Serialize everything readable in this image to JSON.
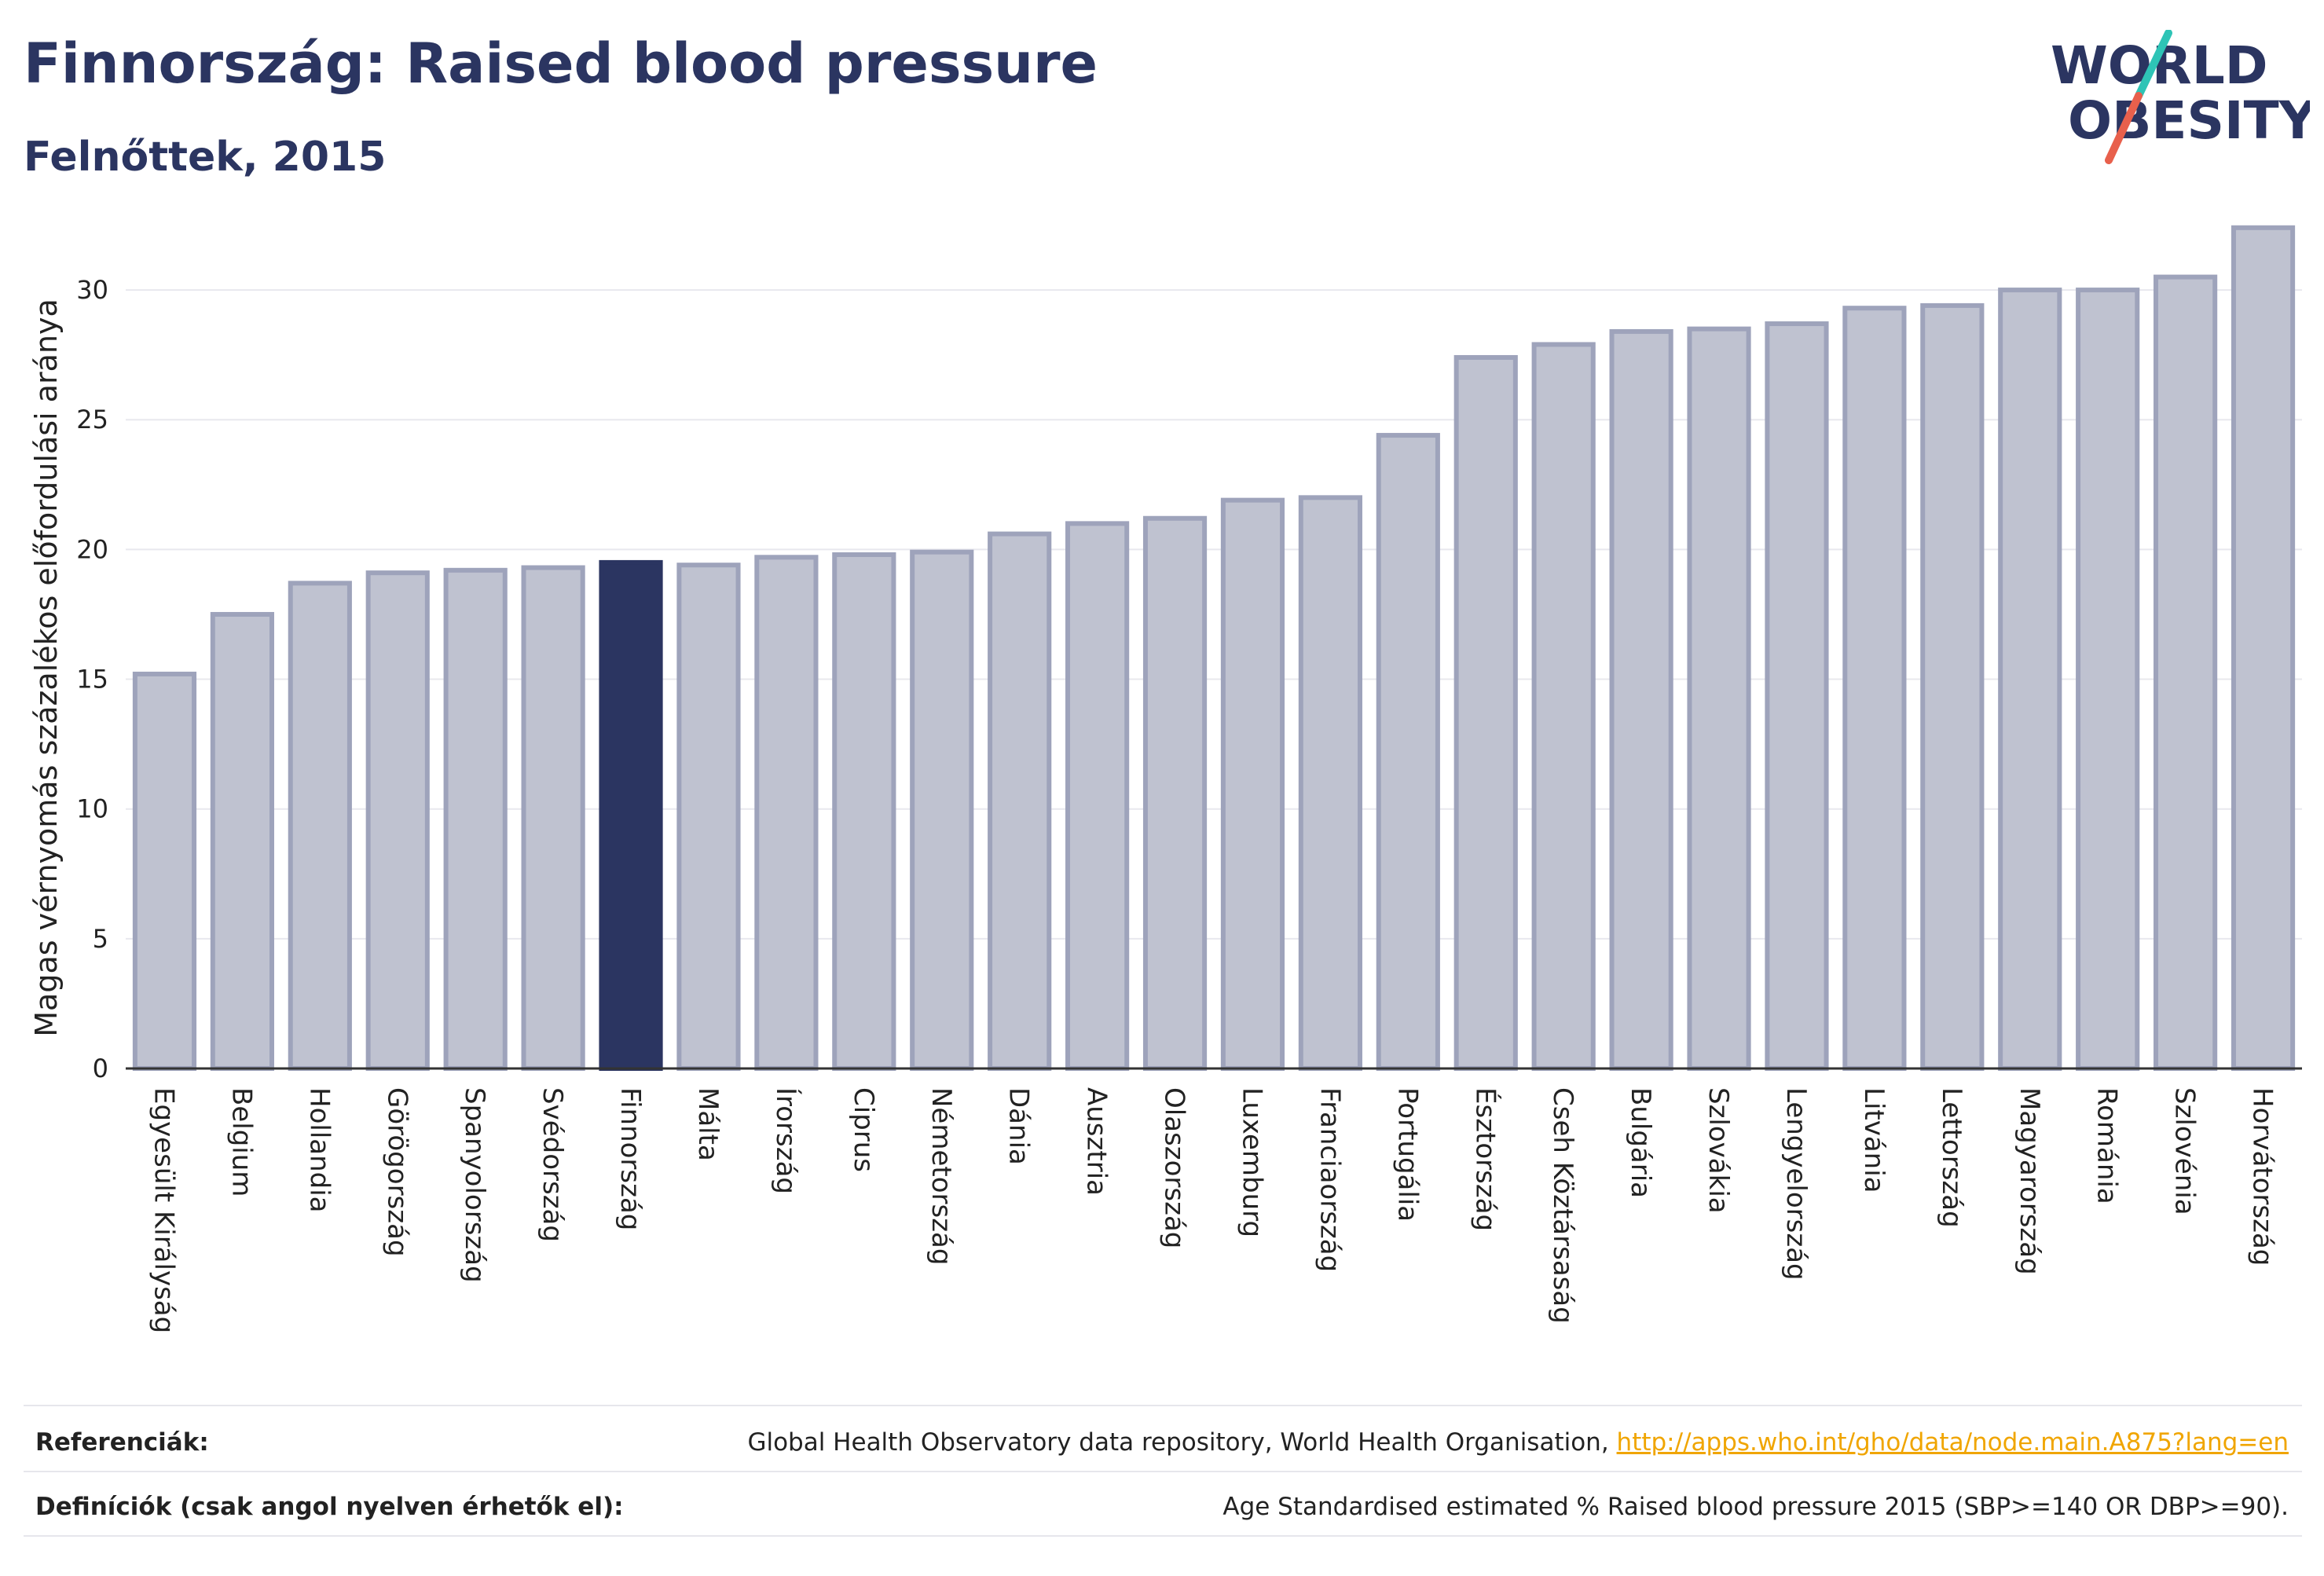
{
  "header": {
    "title": "Finnország: Raised blood pressure",
    "subtitle": "Felnőttek, 2015"
  },
  "logo": {
    "line1": "WORLD",
    "line2": "OBESITY",
    "icon": "world-obesity-logo-icon",
    "colors": {
      "text": "#2b3561",
      "slash_top": "#2ec4b6",
      "slash_bottom": "#e8604c"
    }
  },
  "chart_data": {
    "type": "bar",
    "ylabel": "Magas vérnyomás százalékos előfordulási aránya",
    "xlabel": "",
    "ylim": [
      0,
      33
    ],
    "yticks": [
      0,
      5,
      10,
      15,
      20,
      25,
      30
    ],
    "grid": true,
    "highlight": "Finnország",
    "colors": {
      "bar": "#bfc2d0",
      "bar_edge": "#9ea3bb",
      "highlight": "#2b3561"
    },
    "categories": [
      "Egyesült Királyság",
      "Belgium",
      "Hollandia",
      "Görögország",
      "Spanyolország",
      "Svédország",
      "Finnország",
      "Málta",
      "Írország",
      "Ciprus",
      "Németország",
      "Dánia",
      "Ausztria",
      "Olaszország",
      "Luxemburg",
      "Franciaország",
      "Portugália",
      "Észtország",
      "Cseh Köztársaság",
      "Bulgária",
      "Szlovákia",
      "Lengyelország",
      "Litvánia",
      "Lettország",
      "Magyarország",
      "Románia",
      "Szlovénia",
      "Horvátország"
    ],
    "values": [
      15.2,
      17.5,
      18.7,
      19.1,
      19.2,
      19.3,
      19.5,
      19.4,
      19.7,
      19.8,
      19.9,
      20.6,
      21.0,
      21.2,
      21.9,
      22.0,
      24.4,
      27.4,
      27.9,
      28.4,
      28.5,
      28.7,
      29.3,
      29.4,
      30.0,
      30.0,
      30.5,
      32.4
    ]
  },
  "footer": {
    "references_label": "Referenciák:",
    "references_text": "Global Health Observatory data repository, World Health Organisation, ",
    "references_link": "http://apps.who.int/gho/data/node.main.A875?lang=en",
    "definitions_label": "Definíciók (csak angol nyelven érhetők el):",
    "definitions_text": "Age Standardised estimated % Raised blood pressure 2015 (SBP>=140 OR DBP>=90)."
  }
}
